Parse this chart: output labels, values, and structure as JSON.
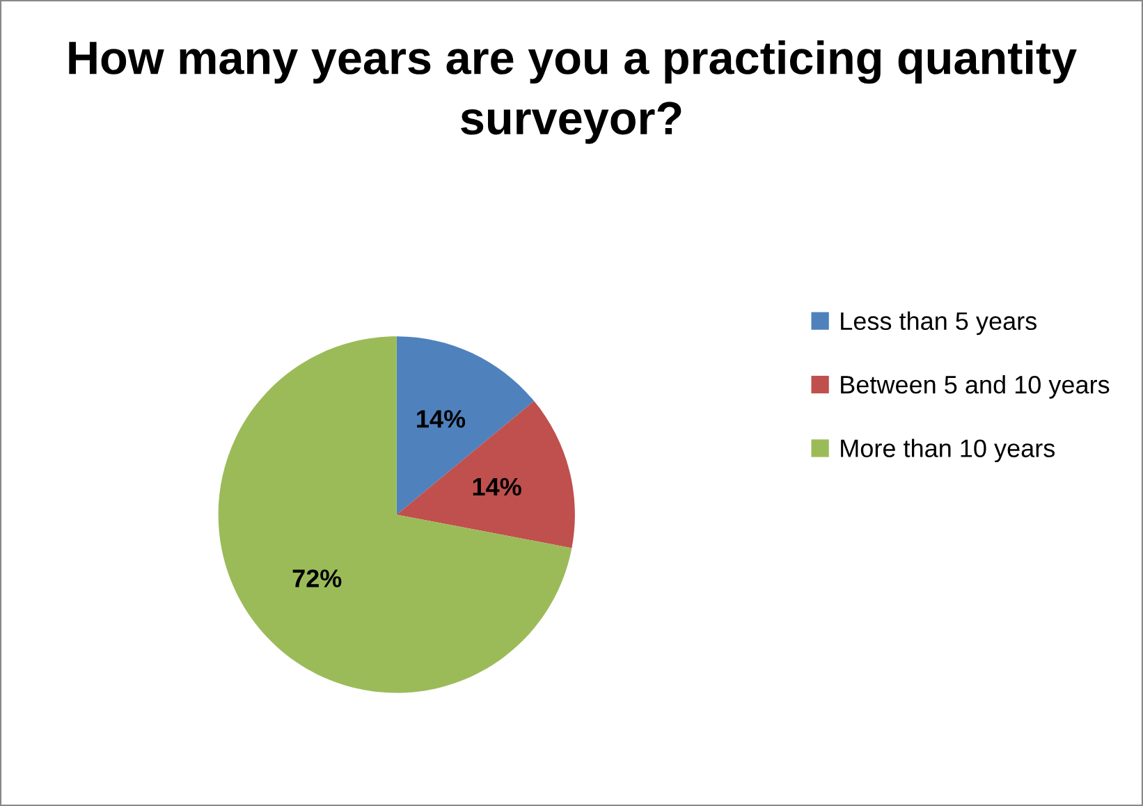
{
  "chart_data": {
    "type": "pie",
    "title": "How many years are you a practicing quantity surveyor?",
    "categories": [
      "Less than 5 years",
      "Between 5 and 10 years",
      "More than 10 years"
    ],
    "values": [
      14,
      14,
      72
    ],
    "colors": [
      "#4f81bd",
      "#c0504d",
      "#9bbb59"
    ],
    "value_labels": [
      "14%",
      "14%",
      "72%"
    ],
    "legend": "right"
  }
}
